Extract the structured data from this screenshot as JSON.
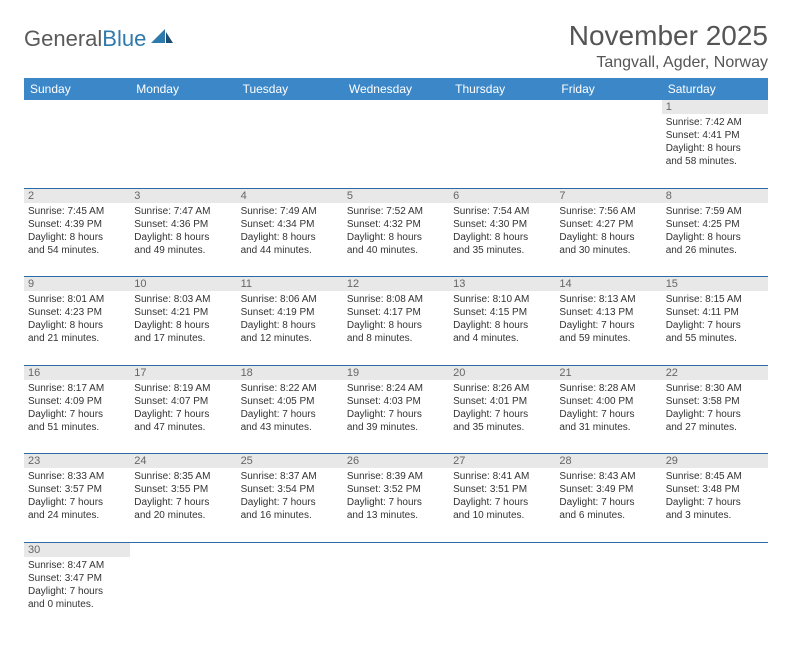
{
  "logo": {
    "textGeneral": "General",
    "textBlue": "Blue"
  },
  "title": "November 2025",
  "location": "Tangvall, Agder, Norway",
  "colors": {
    "headerBg": "#3b87c8",
    "headerText": "#ffffff",
    "dayNumBg": "#e8e8e8",
    "weekDivider": "#2f6aa8",
    "bodyText": "#333333",
    "titleText": "#555555"
  },
  "typography": {
    "titleSize": 28,
    "locationSize": 16,
    "dayHeaderSize": 12,
    "cellSize": 10
  },
  "dayHeaders": [
    "Sunday",
    "Monday",
    "Tuesday",
    "Wednesday",
    "Thursday",
    "Friday",
    "Saturday"
  ],
  "weeks": [
    [
      null,
      null,
      null,
      null,
      null,
      null,
      {
        "n": "1",
        "sr": "7:42 AM",
        "ss": "4:41 PM",
        "dh": "8",
        "dm": "58"
      }
    ],
    [
      {
        "n": "2",
        "sr": "7:45 AM",
        "ss": "4:39 PM",
        "dh": "8",
        "dm": "54"
      },
      {
        "n": "3",
        "sr": "7:47 AM",
        "ss": "4:36 PM",
        "dh": "8",
        "dm": "49"
      },
      {
        "n": "4",
        "sr": "7:49 AM",
        "ss": "4:34 PM",
        "dh": "8",
        "dm": "44"
      },
      {
        "n": "5",
        "sr": "7:52 AM",
        "ss": "4:32 PM",
        "dh": "8",
        "dm": "40"
      },
      {
        "n": "6",
        "sr": "7:54 AM",
        "ss": "4:30 PM",
        "dh": "8",
        "dm": "35"
      },
      {
        "n": "7",
        "sr": "7:56 AM",
        "ss": "4:27 PM",
        "dh": "8",
        "dm": "30"
      },
      {
        "n": "8",
        "sr": "7:59 AM",
        "ss": "4:25 PM",
        "dh": "8",
        "dm": "26"
      }
    ],
    [
      {
        "n": "9",
        "sr": "8:01 AM",
        "ss": "4:23 PM",
        "dh": "8",
        "dm": "21"
      },
      {
        "n": "10",
        "sr": "8:03 AM",
        "ss": "4:21 PM",
        "dh": "8",
        "dm": "17"
      },
      {
        "n": "11",
        "sr": "8:06 AM",
        "ss": "4:19 PM",
        "dh": "8",
        "dm": "12"
      },
      {
        "n": "12",
        "sr": "8:08 AM",
        "ss": "4:17 PM",
        "dh": "8",
        "dm": "8"
      },
      {
        "n": "13",
        "sr": "8:10 AM",
        "ss": "4:15 PM",
        "dh": "8",
        "dm": "4"
      },
      {
        "n": "14",
        "sr": "8:13 AM",
        "ss": "4:13 PM",
        "dh": "7",
        "dm": "59"
      },
      {
        "n": "15",
        "sr": "8:15 AM",
        "ss": "4:11 PM",
        "dh": "7",
        "dm": "55"
      }
    ],
    [
      {
        "n": "16",
        "sr": "8:17 AM",
        "ss": "4:09 PM",
        "dh": "7",
        "dm": "51"
      },
      {
        "n": "17",
        "sr": "8:19 AM",
        "ss": "4:07 PM",
        "dh": "7",
        "dm": "47"
      },
      {
        "n": "18",
        "sr": "8:22 AM",
        "ss": "4:05 PM",
        "dh": "7",
        "dm": "43"
      },
      {
        "n": "19",
        "sr": "8:24 AM",
        "ss": "4:03 PM",
        "dh": "7",
        "dm": "39"
      },
      {
        "n": "20",
        "sr": "8:26 AM",
        "ss": "4:01 PM",
        "dh": "7",
        "dm": "35"
      },
      {
        "n": "21",
        "sr": "8:28 AM",
        "ss": "4:00 PM",
        "dh": "7",
        "dm": "31"
      },
      {
        "n": "22",
        "sr": "8:30 AM",
        "ss": "3:58 PM",
        "dh": "7",
        "dm": "27"
      }
    ],
    [
      {
        "n": "23",
        "sr": "8:33 AM",
        "ss": "3:57 PM",
        "dh": "7",
        "dm": "24"
      },
      {
        "n": "24",
        "sr": "8:35 AM",
        "ss": "3:55 PM",
        "dh": "7",
        "dm": "20"
      },
      {
        "n": "25",
        "sr": "8:37 AM",
        "ss": "3:54 PM",
        "dh": "7",
        "dm": "16"
      },
      {
        "n": "26",
        "sr": "8:39 AM",
        "ss": "3:52 PM",
        "dh": "7",
        "dm": "13"
      },
      {
        "n": "27",
        "sr": "8:41 AM",
        "ss": "3:51 PM",
        "dh": "7",
        "dm": "10"
      },
      {
        "n": "28",
        "sr": "8:43 AM",
        "ss": "3:49 PM",
        "dh": "7",
        "dm": "6"
      },
      {
        "n": "29",
        "sr": "8:45 AM",
        "ss": "3:48 PM",
        "dh": "7",
        "dm": "3"
      }
    ],
    [
      {
        "n": "30",
        "sr": "8:47 AM",
        "ss": "3:47 PM",
        "dh": "7",
        "dm": "0"
      },
      null,
      null,
      null,
      null,
      null,
      null
    ]
  ],
  "labels": {
    "sunrise": "Sunrise:",
    "sunset": "Sunset:",
    "daylight": "Daylight:",
    "hours": "hours",
    "and": "and",
    "minutes": "minutes."
  }
}
